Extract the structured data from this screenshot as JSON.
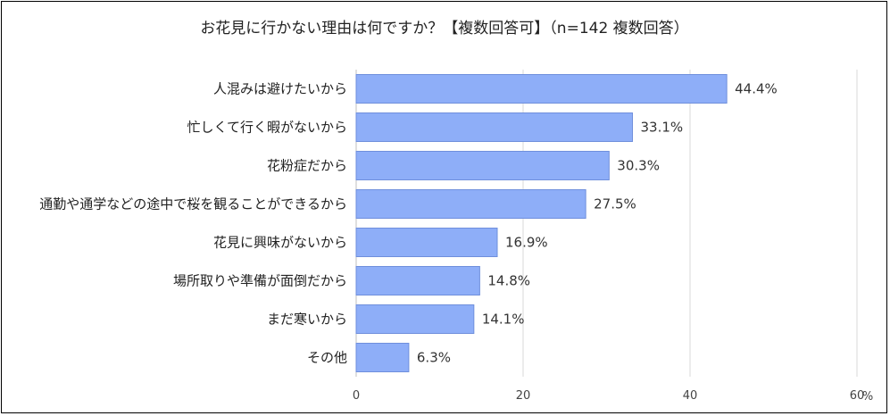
{
  "chart_data": {
    "type": "bar",
    "orientation": "horizontal",
    "title": "お花見に行かない理由は何ですか？【複数回答可】（n=142 複数回答）",
    "categories": [
      "人混みは避けたいから",
      "忙しくて行く暇がないから",
      "花粉症だから",
      "通勤や通学などの途中で桜を観ることができるから",
      "花見に興味がないから",
      "場所取りや準備が面倒だから",
      "まだ寒いから",
      "その他"
    ],
    "values": [
      44.4,
      33.1,
      30.3,
      27.5,
      16.9,
      14.8,
      14.1,
      6.3
    ],
    "value_labels": [
      "44.4%",
      "33.1%",
      "30.3%",
      "27.5%",
      "16.9%",
      "14.8%",
      "14.1%",
      "6.3%"
    ],
    "xlim": [
      0,
      60
    ],
    "x_ticks": [
      "0",
      "20",
      "40",
      "60"
    ],
    "x_unit": "%",
    "grid": true,
    "bar_color": "#8eaef8",
    "bar_border_color": "#6f8fdc",
    "grid_color": "#d9d9d9"
  }
}
